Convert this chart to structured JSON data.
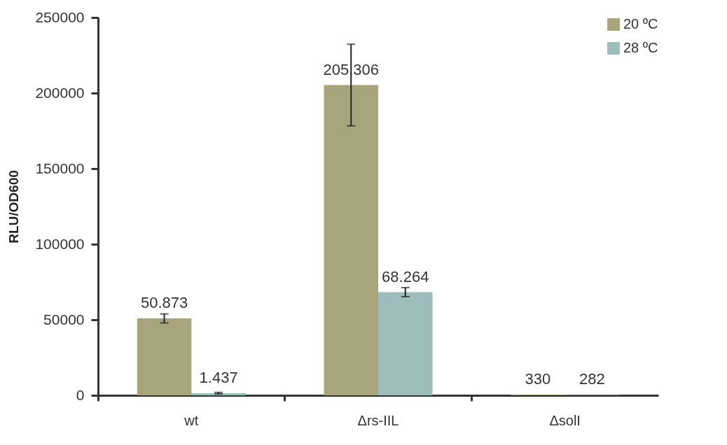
{
  "chart_data": {
    "type": "bar",
    "ylabel": "RLU/OD600",
    "categories": [
      "wt",
      "Δrs-IIL",
      "ΔsolI"
    ],
    "series": [
      {
        "name": "20 ºC",
        "color": "#a8a57c",
        "values": [
          50873,
          205306,
          330
        ],
        "errors": [
          3000,
          27000,
          null
        ],
        "value_labels": [
          "50.873",
          "205.306",
          "330"
        ]
      },
      {
        "name": "28 ºC",
        "color": "#9dbdbc",
        "values": [
          1437,
          68264,
          282
        ],
        "errors": [
          500,
          3000,
          null
        ],
        "value_labels": [
          "1.437",
          "68.264",
          "282"
        ]
      }
    ],
    "ylim": [
      0,
      250000
    ],
    "yticks": [
      0,
      50000,
      100000,
      150000,
      200000,
      250000
    ],
    "grid": false,
    "legend": "top right"
  }
}
